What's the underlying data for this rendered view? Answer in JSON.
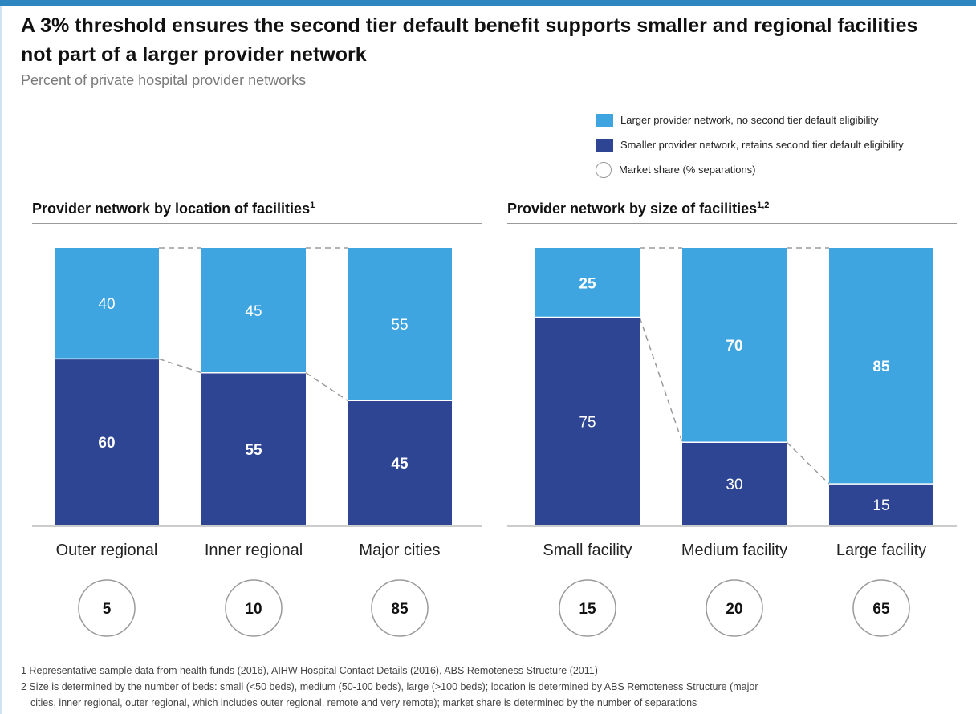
{
  "title": "A 3% threshold ensures the second tier default benefit supports smaller and regional facilities not part of a larger provider network",
  "subtitle": "Percent of private hospital provider networks",
  "colors": {
    "larger": "#3ea5e0",
    "smaller": "#2e4593",
    "accent": "#2e86c1"
  },
  "legend": [
    {
      "label": "Larger provider network, no second tier default eligibility",
      "color": "#3ea5e0"
    },
    {
      "label": "Smaller provider network, retains second tier default eligibility",
      "color": "#2e4593"
    },
    {
      "label": "Market share (% separations)",
      "color": "circle"
    }
  ],
  "chart_data": [
    {
      "type": "bar",
      "stacked": true,
      "title": "Provider network by location of facilities",
      "title_superscript": "1",
      "categories": [
        "Outer regional",
        "Inner regional",
        "Major cities"
      ],
      "series": [
        {
          "name": "Smaller provider network, retains second tier default eligibility",
          "values": [
            60,
            55,
            45
          ]
        },
        {
          "name": "Larger provider network, no second tier default eligibility",
          "values": [
            40,
            45,
            55
          ]
        }
      ],
      "market_share": [
        5,
        10,
        85
      ],
      "ylim": [
        0,
        100
      ]
    },
    {
      "type": "bar",
      "stacked": true,
      "title": "Provider network by size of facilities",
      "title_superscript": "1,2",
      "categories": [
        "Small facility",
        "Medium facility",
        "Large facility"
      ],
      "series": [
        {
          "name": "Smaller provider network, retains second tier default eligibility",
          "values": [
            75,
            30,
            15
          ]
        },
        {
          "name": "Larger provider network, no second tier default eligibility",
          "values": [
            25,
            70,
            85
          ]
        }
      ],
      "market_share": [
        15,
        20,
        65
      ],
      "ylim": [
        0,
        100
      ]
    }
  ],
  "footnotes": [
    "1 Representative sample data from health funds (2016), AIHW Hospital Contact Details (2016), ABS Remoteness Structure (2011)",
    "2 Size is determined by the number of beds: small (<50 beds), medium (50-100 beds), large (>100 beds); location is determined by ABS Remoteness Structure (major",
    "cities, inner regional, outer regional, which includes outer regional, remote and very remote); market share is determined by the number of separations"
  ]
}
